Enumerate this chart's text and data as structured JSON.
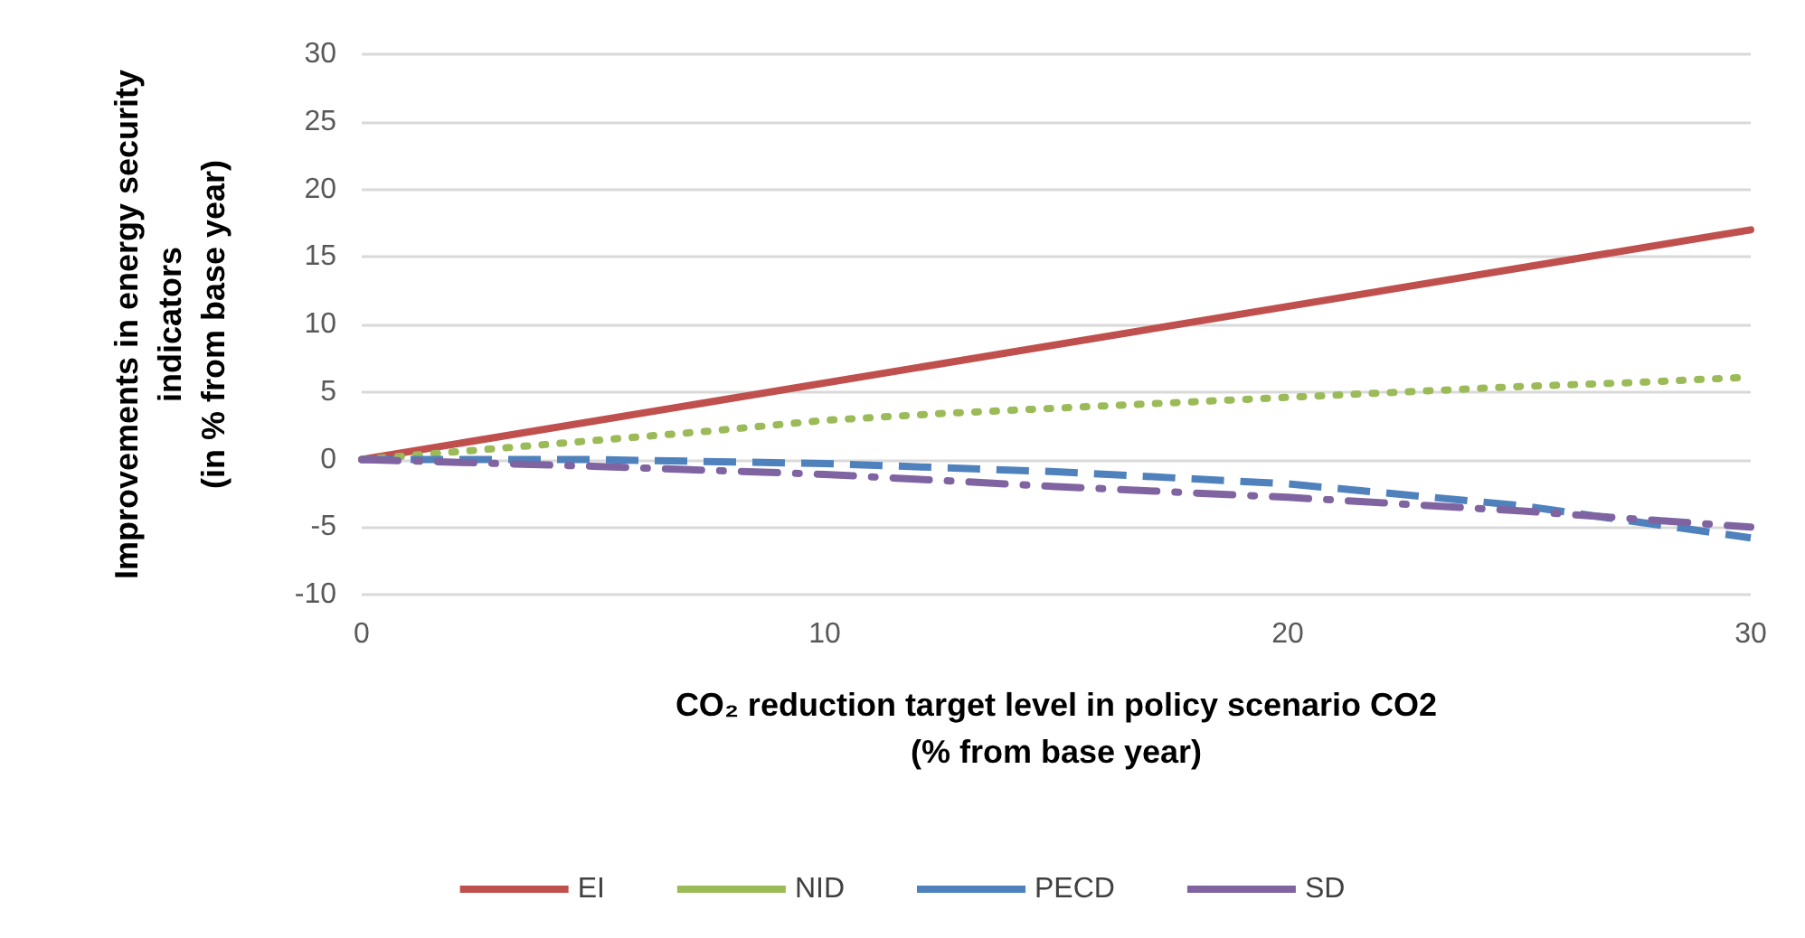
{
  "chart_data": {
    "type": "line",
    "xlabel": "CO₂ reduction target level in policy scenario CO2\n(% from base year)",
    "ylabel": "Improvements in energy security\nindicators\n(in % from base year)",
    "xlim": [
      0,
      30
    ],
    "xticks": [
      0,
      10,
      20,
      30
    ],
    "ylim": [
      -10,
      30
    ],
    "yticks": [
      -10,
      -5,
      0,
      5,
      10,
      15,
      20,
      25,
      30
    ],
    "grid": "y",
    "legend": "bottom",
    "marker": "none",
    "series": [
      {
        "name": "EI",
        "color": "#c0504d",
        "line_style": "solid",
        "x": [
          0,
          30
        ],
        "values": [
          0,
          17
        ]
      },
      {
        "name": "NID",
        "color": "#9bbb59",
        "line_style": "dotted",
        "x": [
          0,
          2.5,
          5,
          7.5,
          10,
          12.5,
          15,
          17.5,
          20,
          22.5,
          25,
          27.5,
          30
        ],
        "values": [
          0,
          0.7,
          1.4,
          2.1,
          2.9,
          3.4,
          3.8,
          4.2,
          4.6,
          5.0,
          5.4,
          5.7,
          6.1
        ]
      },
      {
        "name": "PECD",
        "color": "#4f81bd",
        "line_style": "dashed",
        "x": [
          0,
          5,
          10,
          15,
          20,
          25,
          30
        ],
        "values": [
          0,
          0,
          -0.3,
          -0.9,
          -1.8,
          -3.4,
          -5.8
        ]
      },
      {
        "name": "SD",
        "color": "#8064a2",
        "line_style": "dashdot",
        "x": [
          0,
          5,
          10,
          15,
          20,
          25,
          30
        ],
        "values": [
          0,
          -0.5,
          -1.1,
          -2.0,
          -2.8,
          -3.8,
          -5.0
        ]
      }
    ]
  }
}
